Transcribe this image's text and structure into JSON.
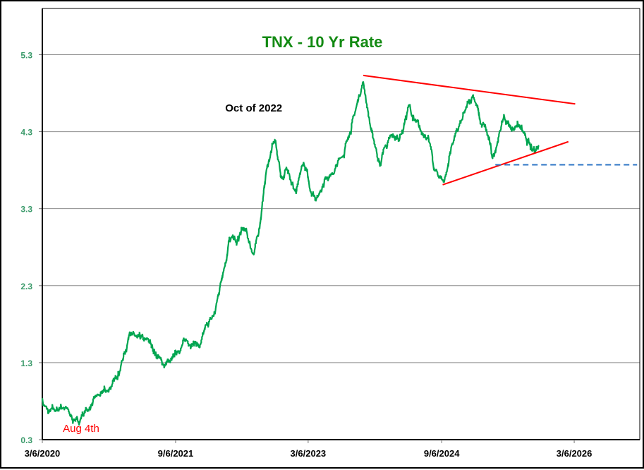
{
  "chart_data": {
    "type": "line",
    "title": "TNX - 10 Yr Rate",
    "xlabel": "",
    "ylabel": "",
    "ylim": [
      0.3,
      5.9
    ],
    "xlim": [
      "2020-03-06",
      "2026-12-01"
    ],
    "yticks": [
      "0.3",
      "1.3",
      "2.3",
      "3.3",
      "4.3",
      "5.3"
    ],
    "xticks": [
      {
        "label": "3/6/2020",
        "date": "2020-03-06"
      },
      {
        "label": "9/6/2021",
        "date": "2021-09-06"
      },
      {
        "label": "3/6/2023",
        "date": "2023-03-06"
      },
      {
        "label": "9/6/2024",
        "date": "2024-09-06"
      },
      {
        "label": "3/6/2026",
        "date": "2026-03-06"
      }
    ],
    "grid": "horizontal",
    "series": [
      {
        "name": "TNX",
        "color": "#00a550",
        "x": [
          "2020-03-06",
          "2020-04-01",
          "2020-05-01",
          "2020-06-01",
          "2020-07-01",
          "2020-08-04",
          "2020-09-01",
          "2020-10-01",
          "2020-11-01",
          "2020-12-01",
          "2021-01-01",
          "2021-02-01",
          "2021-03-01",
          "2021-04-01",
          "2021-05-01",
          "2021-06-01",
          "2021-07-15",
          "2021-08-15",
          "2021-09-15",
          "2021-10-15",
          "2021-11-15",
          "2021-12-15",
          "2022-01-15",
          "2022-02-15",
          "2022-03-15",
          "2022-04-15",
          "2022-05-15",
          "2022-06-15",
          "2022-07-25",
          "2022-08-15",
          "2022-09-15",
          "2022-10-20",
          "2022-11-15",
          "2022-12-15",
          "2023-01-15",
          "2023-02-15",
          "2023-03-20",
          "2023-04-15",
          "2023-05-15",
          "2023-06-15",
          "2023-07-15",
          "2023-08-15",
          "2023-09-15",
          "2023-10-19",
          "2023-11-15",
          "2023-12-27",
          "2024-01-15",
          "2024-02-15",
          "2024-03-15",
          "2024-04-25",
          "2024-05-15",
          "2024-06-15",
          "2024-07-15",
          "2024-08-05",
          "2024-09-16",
          "2024-10-15",
          "2024-11-15",
          "2024-12-15",
          "2025-01-14",
          "2025-02-15",
          "2025-03-15",
          "2025-04-04",
          "2025-05-20",
          "2025-06-15",
          "2025-07-15",
          "2025-08-15",
          "2025-09-15",
          "2025-10-10"
        ],
        "y": [
          0.8,
          0.65,
          0.68,
          0.72,
          0.6,
          0.53,
          0.68,
          0.8,
          0.88,
          0.93,
          1.1,
          1.35,
          1.7,
          1.62,
          1.6,
          1.5,
          1.28,
          1.3,
          1.45,
          1.6,
          1.55,
          1.5,
          1.8,
          1.95,
          2.4,
          2.9,
          2.85,
          3.05,
          2.7,
          3.0,
          3.8,
          4.2,
          3.7,
          3.8,
          3.5,
          3.9,
          3.5,
          3.45,
          3.7,
          3.75,
          3.95,
          4.2,
          4.55,
          4.95,
          4.4,
          3.85,
          4.1,
          4.25,
          4.2,
          4.65,
          4.45,
          4.3,
          4.2,
          3.8,
          3.65,
          4.1,
          4.35,
          4.6,
          4.78,
          4.4,
          4.25,
          3.95,
          4.5,
          4.35,
          4.4,
          4.25,
          4.05,
          4.12
        ]
      }
    ],
    "trendlines": [
      {
        "name": "upper-resistance",
        "color": "#ff0000",
        "style": "solid",
        "from": {
          "date": "2023-10-19",
          "value": 5.03
        },
        "to": {
          "date": "2026-03-10",
          "value": 4.66
        }
      },
      {
        "name": "lower-support",
        "color": "#ff0000",
        "style": "solid",
        "from": {
          "date": "2024-09-10",
          "value": 3.61
        },
        "to": {
          "date": "2026-02-10",
          "value": 4.17
        }
      },
      {
        "name": "horizontal-support",
        "color": "#2e75c6",
        "style": "dashed",
        "from": {
          "date": "2025-04-15",
          "value": 3.87
        },
        "to": {
          "date": "2026-11-20",
          "value": 3.87
        }
      }
    ],
    "annotations": [
      {
        "text": "Oct of 2022",
        "color": "#000000",
        "date": "2022-10-20",
        "value": 4.6
      },
      {
        "text": "Aug 4th",
        "color": "#ff0000",
        "date": "2020-08-04",
        "value": 0.4
      }
    ]
  }
}
